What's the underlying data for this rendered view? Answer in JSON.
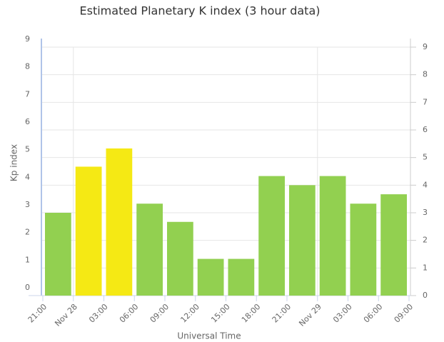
{
  "chart_data": {
    "type": "bar",
    "title": "Estimated Planetary K index (3 hour data)",
    "xlabel": "Universal Time",
    "ylabel": "Kp index",
    "xticks": [
      "21:00",
      "Nov 28",
      "03:00",
      "06:00",
      "09:00",
      "12:00",
      "15:00",
      "18:00",
      "21:00",
      "Nov 29",
      "03:00",
      "06:00",
      "09:00"
    ],
    "values": [
      3,
      4.67,
      5.33,
      3.33,
      2.67,
      1.33,
      1.33,
      4.33,
      4,
      4.33,
      3.33,
      3.67
    ],
    "colors": [
      "#92d050",
      "#f5e914",
      "#f5e914",
      "#92d050",
      "#92d050",
      "#92d050",
      "#92d050",
      "#92d050",
      "#92d050",
      "#92d050",
      "#92d050",
      "#92d050"
    ],
    "ylim": [
      0,
      9
    ],
    "yticks": [
      0,
      1,
      2,
      3,
      4,
      5,
      6,
      7,
      8,
      9
    ],
    "grid": true
  }
}
